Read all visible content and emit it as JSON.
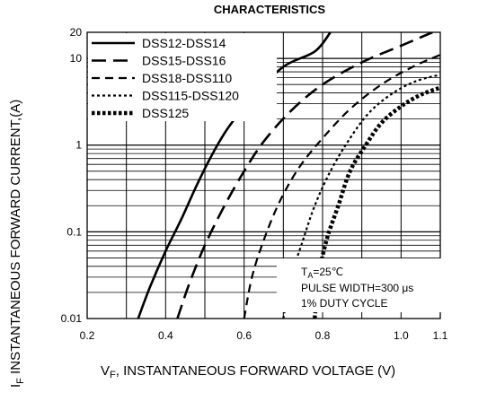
{
  "header": {
    "title": "CHARACTERISTICS"
  },
  "chart_data": {
    "type": "line",
    "title": "CHARACTERISTICS",
    "xlabel_main": "V",
    "xlabel_sub": "F",
    "xlabel_rest": ", INSTANTANEOUS FORWARD VOLTAGE (V)",
    "ylabel_main": "I",
    "ylabel_sub": "F",
    "ylabel_rest": " INSTANTANEOUS FORWARD CURRENT,(A)",
    "x_scale": "linear",
    "y_scale": "log",
    "xlim": [
      0.2,
      1.1
    ],
    "ylim": [
      0.01,
      20
    ],
    "x_ticks": [
      {
        "value": 0.2,
        "label": "0.2"
      },
      {
        "value": 0.4,
        "label": "0.4"
      },
      {
        "value": 0.6,
        "label": "0.6"
      },
      {
        "value": 0.8,
        "label": "0.8"
      },
      {
        "value": 1.0,
        "label": "1.0"
      },
      {
        "value": 1.1,
        "label": "1.1"
      }
    ],
    "y_ticks": [
      {
        "value": 0.01,
        "label": "0.01"
      },
      {
        "value": 0.1,
        "label": "0.1"
      },
      {
        "value": 1,
        "label": "1"
      },
      {
        "value": 10,
        "label": "10"
      },
      {
        "value": 20,
        "label": "20"
      }
    ],
    "grid": true,
    "legend_position": "top-left",
    "series": [
      {
        "name": "DSS12-DSS14",
        "style": "solid",
        "x": [
          0.33,
          0.36,
          0.4,
          0.44,
          0.48,
          0.52,
          0.56,
          0.62,
          0.7,
          0.78,
          0.82
        ],
        "y": [
          0.01,
          0.023,
          0.06,
          0.14,
          0.35,
          0.8,
          1.6,
          3.5,
          8,
          12,
          20
        ]
      },
      {
        "name": "DSS15-DSS16",
        "style": "dash",
        "x": [
          0.43,
          0.46,
          0.5,
          0.55,
          0.6,
          0.65,
          0.72,
          0.8,
          0.9,
          1.0,
          1.08
        ],
        "y": [
          0.01,
          0.025,
          0.07,
          0.2,
          0.5,
          1.1,
          2.5,
          5,
          9,
          14,
          20
        ]
      },
      {
        "name": "DSS18-DSS110",
        "style": "dash-medium",
        "x": [
          0.6,
          0.62,
          0.65,
          0.69,
          0.74,
          0.8,
          0.87,
          0.95,
          1.03,
          1.1
        ],
        "y": [
          0.01,
          0.03,
          0.08,
          0.22,
          0.55,
          1.2,
          2.6,
          5,
          8,
          11
        ]
      },
      {
        "name": "DSS115-DSS120",
        "style": "dot-short",
        "x": [
          0.7,
          0.72,
          0.75,
          0.78,
          0.82,
          0.87,
          0.92,
          0.98,
          1.04,
          1.1
        ],
        "y": [
          0.01,
          0.03,
          0.08,
          0.2,
          0.5,
          1.2,
          2.4,
          4,
          5.5,
          6.5
        ]
      },
      {
        "name": "DSS125",
        "style": "dot-bold",
        "x": [
          0.78,
          0.79,
          0.81,
          0.84,
          0.87,
          0.91,
          0.95,
          1.0,
          1.05,
          1.1
        ],
        "y": [
          0.01,
          0.03,
          0.08,
          0.2,
          0.5,
          1.0,
          1.8,
          2.8,
          3.8,
          4.6
        ]
      }
    ],
    "annotations": {
      "ta_main": "T",
      "ta_sub": "A",
      "ta_rest": "=25℃",
      "pulse": "PULSE WIDTH=300 μs",
      "duty": "1% DUTY CYCLE"
    }
  }
}
